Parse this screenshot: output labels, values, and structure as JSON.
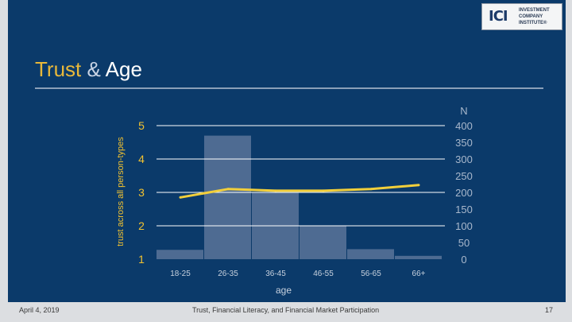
{
  "logo": {
    "mark": "ICI",
    "lines": [
      "INVESTMENT",
      "COMPANY",
      "INSTITUTE®"
    ]
  },
  "title": {
    "part1": "Trust",
    "part2": "&",
    "part3": "Age"
  },
  "footer": {
    "date": "April 4, 2019",
    "center": "Trust, Financial Literacy, and Financial Market Participation",
    "page": "17"
  },
  "colors": {
    "background": "#0b3a6a",
    "line": "#f2cf3b",
    "bars": "#5b7499",
    "gridlines": "#ffffff"
  },
  "chart_data": {
    "type": "bar",
    "categories": [
      "18-25",
      "26-35",
      "36-45",
      "46-55",
      "56-65",
      "66+"
    ],
    "xlabel": "age",
    "ylabel": "trust across all person-types",
    "y_left_ticks": [
      "1",
      "2",
      "3",
      "4",
      "5"
    ],
    "ylim_left": [
      1,
      5
    ],
    "y_right_title": "N",
    "y_right_ticks": [
      "0",
      "50",
      "100",
      "150",
      "200",
      "250",
      "300",
      "350",
      "400"
    ],
    "ylim_right": [
      0,
      400
    ],
    "gridlines": [
      2,
      3,
      4,
      5
    ],
    "series": [
      {
        "kind": "bar",
        "axis": "right",
        "values": [
          28,
          370,
          200,
          100,
          30,
          10
        ]
      },
      {
        "kind": "line",
        "axis": "left",
        "values": [
          2.85,
          3.1,
          3.05,
          3.05,
          3.1,
          3.22
        ]
      }
    ]
  }
}
